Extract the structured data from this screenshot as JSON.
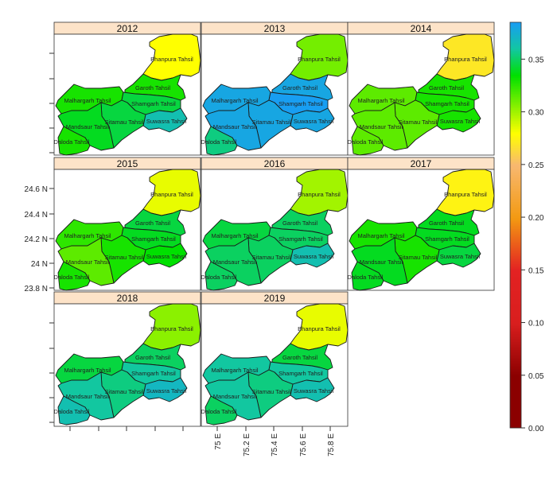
{
  "chart_data": {
    "type": "heatmap",
    "subtype": "choropleth-small-multiples",
    "panels": [
      "2012",
      "2013",
      "2014",
      "2015",
      "2016",
      "2017",
      "2018",
      "2019"
    ],
    "regions": [
      "Bhanpura Tahsil",
      "Garoth Tahsil",
      "Malhargarh Tahsil",
      "Shamgarh Tahsil",
      "Sitamau Tahsil",
      "Suwasra Tahsil",
      "Mandsaur Tahsil",
      "Daloda Tahsil"
    ],
    "values": {
      "2012": [
        0.28,
        0.33,
        0.33,
        0.345,
        0.345,
        0.365,
        0.34,
        0.33
      ],
      "2013": [
        0.31,
        0.38,
        0.38,
        0.385,
        0.38,
        0.38,
        0.38,
        0.355
      ],
      "2014": [
        0.27,
        0.33,
        0.315,
        0.33,
        0.315,
        0.33,
        0.315,
        0.315
      ],
      "2015": [
        0.285,
        0.345,
        0.325,
        0.34,
        0.33,
        0.335,
        0.315,
        0.33
      ],
      "2016": [
        0.3,
        0.35,
        0.345,
        0.35,
        0.35,
        0.365,
        0.35,
        0.35
      ],
      "2017": [
        0.275,
        0.34,
        0.33,
        0.34,
        0.33,
        0.345,
        0.34,
        0.34
      ],
      "2018": [
        0.305,
        0.35,
        0.345,
        0.36,
        0.355,
        0.37,
        0.36,
        0.365
      ],
      "2019": [
        0.285,
        0.345,
        0.36,
        0.36,
        0.355,
        0.365,
        0.36,
        0.35
      ]
    },
    "y_ticks": [
      "24.6 N",
      "24.4 N",
      "24.2 N",
      "24 N",
      "23.8 N"
    ],
    "x_ticks": [
      "75 E",
      "75.2 E",
      "75.4 E",
      "75.6 E",
      "75.8 E"
    ],
    "colorbar": {
      "range": [
        0.0,
        0.385
      ],
      "ticks": [
        "0.00",
        "0.05",
        "0.10",
        "0.15",
        "0.20",
        "0.25",
        "0.30",
        "0.35"
      ],
      "colors": [
        "#8b0000",
        "#d91e1e",
        "#f39a12",
        "#ffff00",
        "#00e000",
        "#12c7a0",
        "#189ef2"
      ]
    },
    "strip_color": "#fde3c8"
  }
}
